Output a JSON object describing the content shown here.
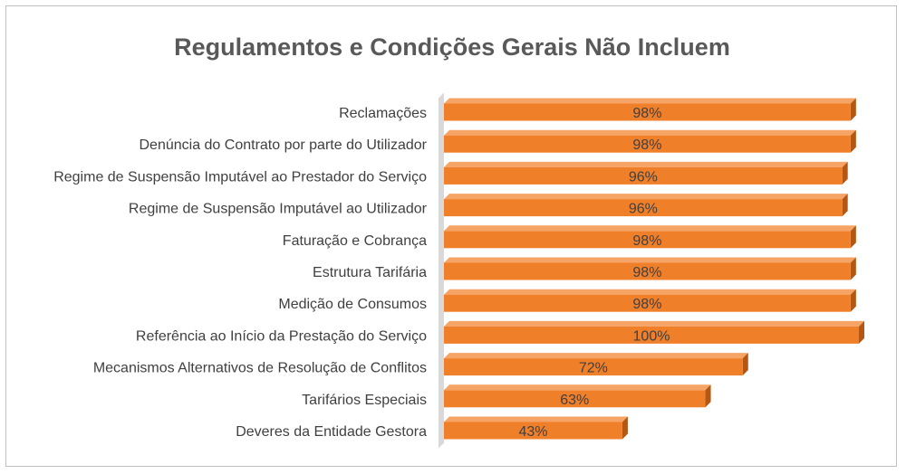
{
  "chart_data": {
    "type": "bar",
    "orientation": "horizontal",
    "title": "Regulamentos e Condições Gerais Não Incluem",
    "categories": [
      "Reclamações",
      "Denúncia do Contrato por parte do Utilizador",
      "Regime de Suspensão Imputável ao Prestador do Serviço",
      "Regime de Suspensão Imputável ao Utilizador",
      "Faturação e Cobrança",
      "Estrutura Tarifária",
      "Medição de Consumos",
      "Referência ao Início da Prestação do Serviço",
      "Mecanismos Alternativos de Resolução de Conflitos",
      "Tarifários Especiais",
      "Deveres da Entidade Gestora"
    ],
    "values": [
      98,
      98,
      96,
      96,
      98,
      98,
      98,
      100,
      72,
      63,
      43
    ],
    "data_labels": [
      "98%",
      "98%",
      "96%",
      "96%",
      "98%",
      "98%",
      "98%",
      "100%",
      "72%",
      "63%",
      "43%"
    ],
    "xlim": [
      0,
      100
    ],
    "grid": false,
    "legend": "none",
    "style": "3d-bar",
    "colors": {
      "bar_front": "#f07f2a",
      "bar_top": "#f6a366",
      "bar_side": "#b45712",
      "wall": "#d9d9d9",
      "label": "#404040",
      "title": "#595959"
    }
  }
}
